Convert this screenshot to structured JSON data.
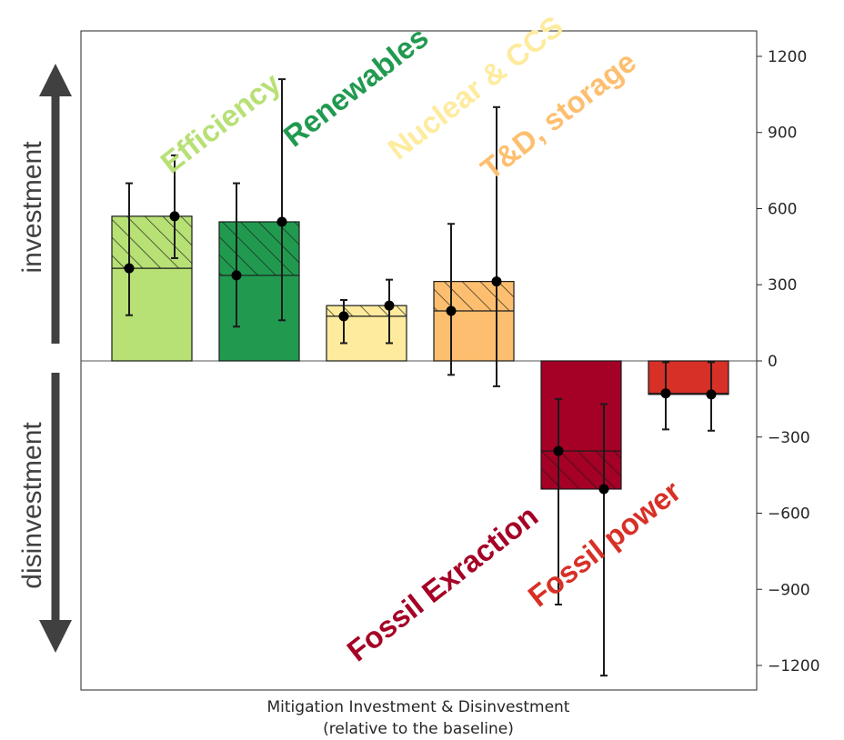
{
  "chart_data": {
    "type": "bar",
    "xlabel": "Mitigation Investment & Disinvestment",
    "xlabel_sub": "(relative to the baseline)",
    "ylim": [
      -1290,
      1290
    ],
    "yticks": [
      1200,
      900,
      600,
      300,
      0,
      -300,
      -600,
      -900,
      -1200
    ],
    "ytick_labels": [
      "1200",
      "900",
      "600",
      "300",
      "0",
      "−300",
      "−600",
      "−900",
      "−1200"
    ],
    "y_axis_side": "right",
    "side_labels": {
      "top": "investment",
      "bottom": "disinvestment"
    },
    "categories": [
      "Efficiency",
      "Renewables",
      "Nuclear & CCS",
      "T&D, storage",
      "Fossil Exraction",
      "Fossil power"
    ],
    "colors": [
      "#b7e075",
      "#219a50",
      "#feeb9d",
      "#fdbf6f",
      "#a50026",
      "#d73027"
    ],
    "label_colors": [
      "#b7e075",
      "#219a50",
      "#feeb9d",
      "#fdbf6f",
      "#a50026",
      "#d73027"
    ],
    "series": [
      {
        "values": [
          365,
          337,
          176,
          197,
          -355,
          -128
        ],
        "err_low": [
          180,
          135,
          70,
          -55,
          -960,
          -270
        ],
        "err_high": [
          700,
          700,
          240,
          540,
          -150,
          -5
        ]
      },
      {
        "values": [
          570,
          548,
          218,
          313,
          -505,
          -132
        ],
        "err_low": [
          405,
          160,
          70,
          -100,
          -1240,
          -275
        ],
        "err_high": [
          810,
          1110,
          320,
          1000,
          -170,
          -5
        ]
      }
    ]
  }
}
